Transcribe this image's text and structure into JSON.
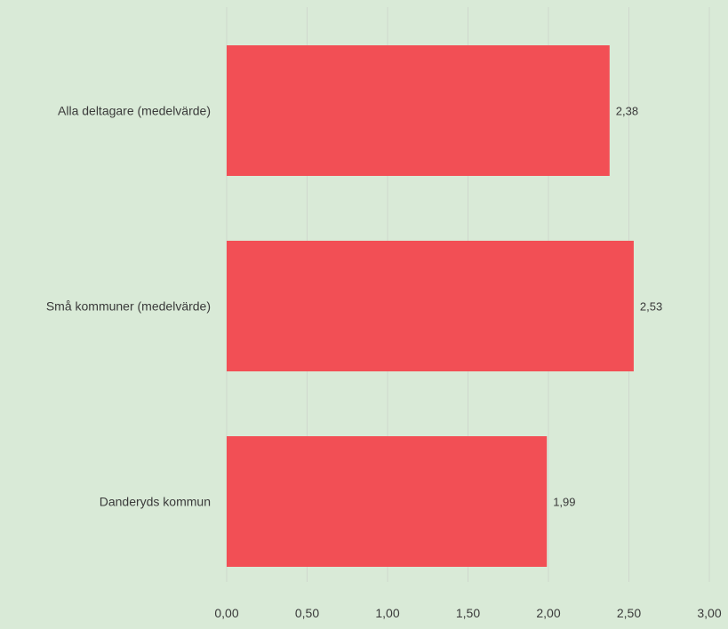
{
  "chart_data": {
    "type": "bar",
    "orientation": "horizontal",
    "categories": [
      "Alla deltagare (medelvärde)",
      "Små kommuner (medelvärde)",
      "Danderyds kommun"
    ],
    "values": [
      2.38,
      2.53,
      1.99
    ],
    "value_labels": [
      "2,38",
      "2,53",
      "1,99"
    ],
    "xlim": [
      0,
      3
    ],
    "x_ticks": [
      0,
      0.5,
      1,
      1.5,
      2,
      2.5,
      3
    ],
    "x_tick_labels": [
      "0,00",
      "0,50",
      "1,00",
      "1,50",
      "2,00",
      "2,50",
      "3,00"
    ],
    "grid": true,
    "legend": "none",
    "title": "",
    "xlabel": "",
    "ylabel": "",
    "colors": {
      "bar": "#f24f55",
      "background": "#d9ead7",
      "grid": "#cfd8cd",
      "text": "#3a3a3a"
    }
  }
}
